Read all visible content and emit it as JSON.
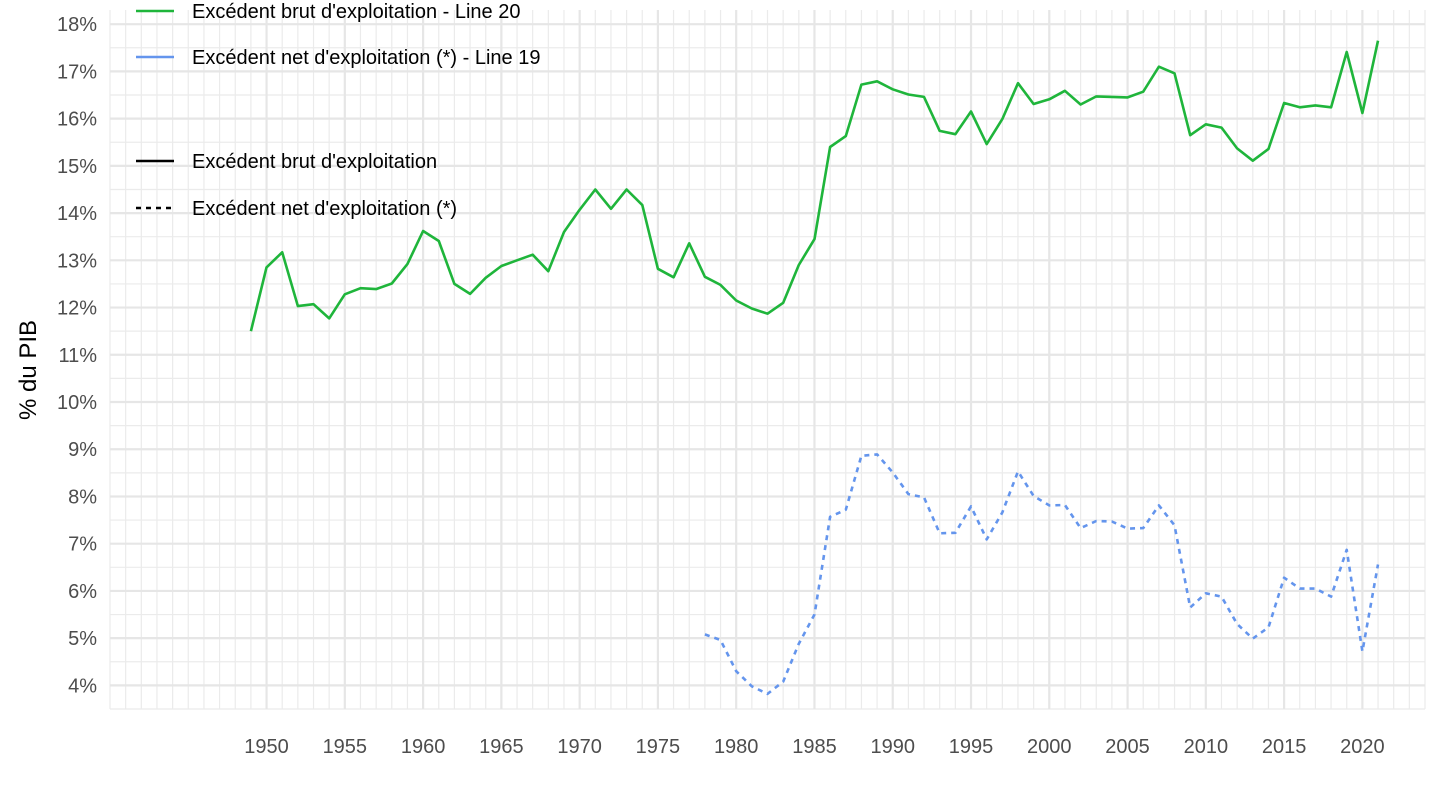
{
  "chart_data": {
    "type": "line",
    "ylabel": "% du PIB",
    "xlabel": "",
    "xlim": [
      1940,
      2024
    ],
    "ylim": [
      3.5,
      18.3
    ],
    "grid": true,
    "legend_position": "top-left",
    "x_ticks": [
      1950,
      1955,
      1960,
      1965,
      1970,
      1975,
      1980,
      1985,
      1990,
      1995,
      2000,
      2005,
      2010,
      2015,
      2020
    ],
    "x_tick_labels": [
      "1950",
      "1955",
      "1960",
      "1965",
      "1970",
      "1975",
      "1980",
      "1985",
      "1990",
      "1995",
      "2000",
      "2005",
      "2010",
      "2015",
      "2020"
    ],
    "y_ticks": [
      4,
      5,
      6,
      7,
      8,
      9,
      10,
      11,
      12,
      13,
      14,
      15,
      16,
      17,
      18
    ],
    "y_tick_labels": [
      "4%",
      "5%",
      "6%",
      "7%",
      "8%",
      "9%",
      "10%",
      "11%",
      "12%",
      "13%",
      "14%",
      "15%",
      "16%",
      "17%",
      "18%"
    ],
    "series": [
      {
        "name": "Excédent brut d'exploitation - Line 20",
        "color": "#1fb53b",
        "linetype": "solid",
        "x": [
          1949,
          1950,
          1951,
          1952,
          1953,
          1954,
          1955,
          1956,
          1957,
          1958,
          1959,
          1960,
          1961,
          1962,
          1963,
          1964,
          1965,
          1966,
          1967,
          1968,
          1969,
          1970,
          1971,
          1972,
          1973,
          1974,
          1975,
          1976,
          1977,
          1978,
          1979,
          1980,
          1981,
          1982,
          1983,
          1984,
          1985,
          1986,
          1987,
          1988,
          1989,
          1990,
          1991,
          1992,
          1993,
          1994,
          1995,
          1996,
          1997,
          1998,
          1999,
          2000,
          2001,
          2002,
          2003,
          2004,
          2005,
          2006,
          2007,
          2008,
          2009,
          2010,
          2011,
          2012,
          2013,
          2014,
          2015,
          2016,
          2017,
          2018,
          2019,
          2020,
          2021
        ],
        "values": [
          11.5,
          12.85,
          13.17,
          12.03,
          12.07,
          11.77,
          12.28,
          12.41,
          12.39,
          12.51,
          12.92,
          13.62,
          13.41,
          12.5,
          12.29,
          12.63,
          12.88,
          13.0,
          13.12,
          12.77,
          13.6,
          14.07,
          14.5,
          14.09,
          14.5,
          14.17,
          12.82,
          12.64,
          13.36,
          12.65,
          12.48,
          12.15,
          11.98,
          11.87,
          12.1,
          12.9,
          13.45,
          15.4,
          15.63,
          16.72,
          16.79,
          16.62,
          16.51,
          16.46,
          15.74,
          15.67,
          16.15,
          15.46,
          15.99,
          16.75,
          16.31,
          16.41,
          16.59,
          16.3,
          16.47,
          16.46,
          16.45,
          16.57,
          17.1,
          16.96,
          15.65,
          15.88,
          15.81,
          15.37,
          15.11,
          15.36,
          16.33,
          16.24,
          16.28,
          16.24,
          17.41,
          16.12,
          17.65
        ]
      },
      {
        "name": "Excédent net d'exploitation (*) - Line 19",
        "color": "#6495ed",
        "linetype": "dotted",
        "x": [
          1978,
          1979,
          1980,
          1981,
          1982,
          1983,
          1984,
          1985,
          1986,
          1987,
          1988,
          1989,
          1990,
          1991,
          1992,
          1993,
          1994,
          1995,
          1996,
          1997,
          1998,
          1999,
          2000,
          2001,
          2002,
          2003,
          2004,
          2005,
          2006,
          2007,
          2008,
          2009,
          2010,
          2011,
          2012,
          2013,
          2014,
          2015,
          2016,
          2017,
          2018,
          2019,
          2020,
          2021
        ],
        "values": [
          5.08,
          4.96,
          4.3,
          3.98,
          3.82,
          4.08,
          4.88,
          5.5,
          7.57,
          7.72,
          8.86,
          8.89,
          8.51,
          8.05,
          7.98,
          7.22,
          7.23,
          7.79,
          7.09,
          7.66,
          8.53,
          8.01,
          7.81,
          7.82,
          7.33,
          7.48,
          7.47,
          7.32,
          7.33,
          7.81,
          7.39,
          5.65,
          5.95,
          5.88,
          5.3,
          4.99,
          5.23,
          6.28,
          6.05,
          6.05,
          5.88,
          6.87,
          4.72,
          6.56
        ]
      }
    ],
    "linetype_legend": [
      {
        "label": "Excédent brut d'exploitation",
        "linetype": "solid"
      },
      {
        "label": "Excédent net d'exploitation (*)",
        "linetype": "dotted"
      }
    ]
  }
}
